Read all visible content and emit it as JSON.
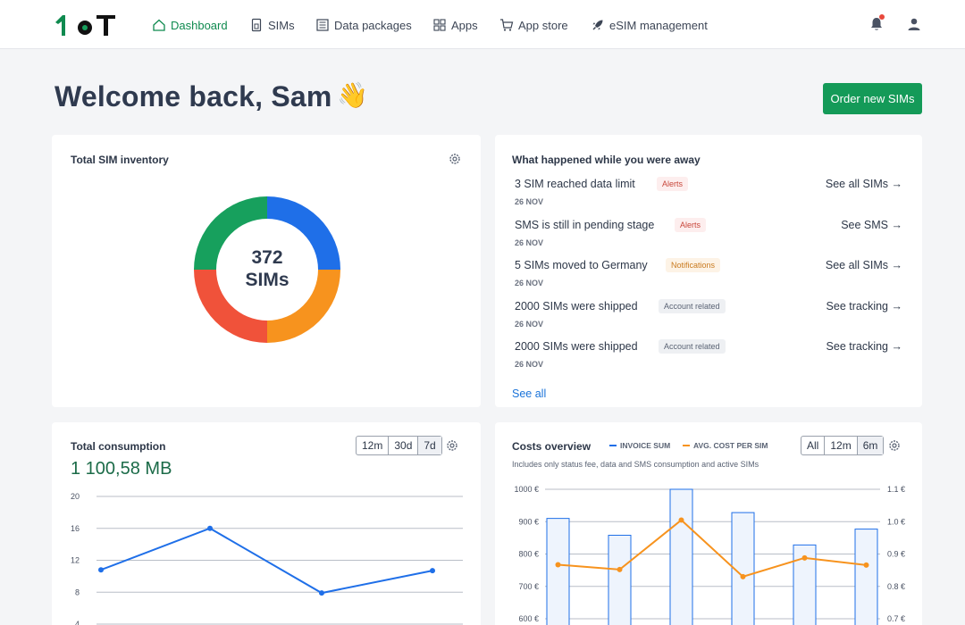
{
  "nav": {
    "items": [
      {
        "label": "Dashboard",
        "icon": "home-icon",
        "active": true
      },
      {
        "label": "SIMs",
        "icon": "sim-icon"
      },
      {
        "label": "Data packages",
        "icon": "package-icon"
      },
      {
        "label": "Apps",
        "icon": "apps-grid-icon"
      },
      {
        "label": "App store",
        "icon": "cart-icon"
      },
      {
        "label": "eSIM management",
        "icon": "rocket-icon"
      }
    ]
  },
  "header": {
    "welcome": "Welcome back, Sam",
    "wave": "👋",
    "order_button": "Order new SIMs"
  },
  "inventory": {
    "title": "Total SIM inventory",
    "count": "372",
    "unit": "SIMs",
    "segments_colors": [
      "#1f6fe8",
      "#f7931e",
      "#f0523a",
      "#17a05d"
    ]
  },
  "events": {
    "title": "What happened while you were away",
    "items": [
      {
        "text": "3 SIM reached data limit",
        "badge": "Alerts",
        "date": "26 NOV",
        "link": "See all SIMs →"
      },
      {
        "text": "SMS is still in pending stage",
        "badge": "Alerts",
        "date": "26 NOV",
        "link": "See SMS →"
      },
      {
        "text": "5 SIMs moved to Germany",
        "badge": "Notifications",
        "date": "26 NOV",
        "link": "See all SIMs →"
      },
      {
        "text": "2000 SIMs were shipped",
        "badge": "Account related",
        "date": "26 NOV",
        "link": "See tracking →"
      },
      {
        "text": "2000 SIMs were shipped",
        "badge": "Account related",
        "date": "26 NOV",
        "link": "See tracking →"
      }
    ],
    "see_all": "See all"
  },
  "consumption": {
    "title": "Total consumption",
    "value": "1 100,58 MB",
    "ranges": [
      "12m",
      "30d",
      "7d"
    ],
    "selected_range": "7d"
  },
  "costs": {
    "title": "Costs overview",
    "legend": [
      "INVOICE SUM",
      "AVG. COST PER SIM"
    ],
    "note": "Includes only status fee, data and SMS consumption and active SIMs",
    "ranges": [
      "All",
      "12m",
      "6m"
    ],
    "selected_range": "6m"
  },
  "chart_data": [
    {
      "type": "line",
      "title": "Total consumption",
      "y_ticks": [
        "20",
        "16",
        "12",
        "8",
        "4"
      ],
      "ylim": [
        4,
        20
      ],
      "series": [
        {
          "values": [
            10.8,
            16,
            7.9,
            10.7
          ]
        }
      ],
      "grid": true,
      "color": "#1f6fe8"
    },
    {
      "type": "bar",
      "title": "Costs overview",
      "y_ticks_left": [
        "1000 €",
        "900 €",
        "800 €",
        "700 €",
        "600 €"
      ],
      "y_ticks_right": [
        "1.1 €",
        "1.0 €",
        "0.9 €",
        "0.8 €",
        "0.7 €"
      ],
      "ylim_left": [
        600,
        1000
      ],
      "ylim_right": [
        0.7,
        1.1
      ],
      "series": [
        {
          "name": "INVOICE SUM",
          "values": [
            910,
            858,
            1000,
            928,
            828,
            877
          ],
          "color": "#1f6fe8"
        },
        {
          "name": "AVG. COST PER SIM",
          "values": [
            0.867,
            0.852,
            1.005,
            0.83,
            0.888,
            0.866
          ],
          "color": "#f7931e"
        }
      ]
    }
  ]
}
